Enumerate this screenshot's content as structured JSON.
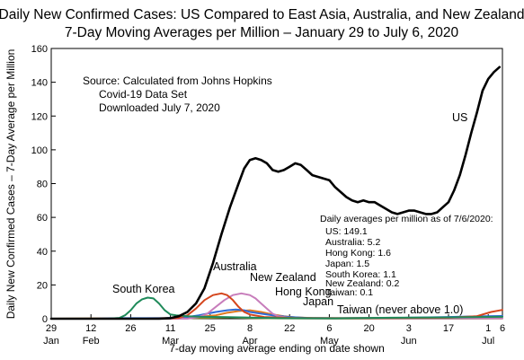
{
  "chart_data": {
    "type": "line",
    "title": "Daily New Confirmed Cases:  US Compared to East Asia, Australia, and New Zealand",
    "subtitle": "7-Day Moving Averages per Million – January 29 to July 6, 2020",
    "xlabel": "7-day moving average ending on date shown",
    "ylabel": "Daily New Confirmed Cases – 7-Day Average per Million",
    "ylim": [
      0,
      160
    ],
    "yticks": [
      0,
      20,
      40,
      60,
      80,
      100,
      120,
      140,
      160
    ],
    "xlim": [
      0,
      159
    ],
    "xticks": [
      {
        "day": 0,
        "top": "29",
        "bottom": "Jan"
      },
      {
        "day": 14,
        "top": "12",
        "bottom": "Feb"
      },
      {
        "day": 28,
        "top": "26",
        "bottom": ""
      },
      {
        "day": 42,
        "top": "11",
        "bottom": "Mar"
      },
      {
        "day": 56,
        "top": "25",
        "bottom": ""
      },
      {
        "day": 70,
        "top": "8",
        "bottom": "Apr"
      },
      {
        "day": 84,
        "top": "22",
        "bottom": ""
      },
      {
        "day": 98,
        "top": "6",
        "bottom": "May"
      },
      {
        "day": 112,
        "top": "20",
        "bottom": ""
      },
      {
        "day": 126,
        "top": "3",
        "bottom": "Jun"
      },
      {
        "day": 140,
        "top": "17",
        "bottom": ""
      },
      {
        "day": 154,
        "top": "1",
        "bottom": "Jul"
      },
      {
        "day": 159,
        "top": "6",
        "bottom": ""
      }
    ],
    "grid": false,
    "source_note": [
      "Source:  Calculated from Johns Hopkins",
      "Covid-19 Data Set",
      "Downloaded July 7, 2020"
    ],
    "averages_box": {
      "heading": "Daily averages per million as of 7/6/2020:",
      "lines": [
        "US: 149.1",
        "Australia:  5.2",
        "Hong Kong:  1.6",
        "Japan:  1.5",
        "South Korea:  1.1",
        "New Zealand:  0.2",
        "Taiwan:  0.1"
      ]
    },
    "series": [
      {
        "name": "US",
        "color": "#000000",
        "points": [
          [
            0,
            0
          ],
          [
            30,
            0
          ],
          [
            38,
            0
          ],
          [
            42,
            0.3
          ],
          [
            45,
            1.5
          ],
          [
            48,
            4
          ],
          [
            51,
            9
          ],
          [
            54,
            18
          ],
          [
            57,
            33
          ],
          [
            60,
            50
          ],
          [
            63,
            66
          ],
          [
            66,
            80
          ],
          [
            68,
            89
          ],
          [
            70,
            94
          ],
          [
            72,
            95
          ],
          [
            74,
            94
          ],
          [
            76,
            92
          ],
          [
            78,
            88
          ],
          [
            80,
            87
          ],
          [
            82,
            88
          ],
          [
            84,
            90
          ],
          [
            86,
            92
          ],
          [
            88,
            91
          ],
          [
            90,
            88
          ],
          [
            92,
            85
          ],
          [
            94,
            84
          ],
          [
            96,
            83
          ],
          [
            98,
            82
          ],
          [
            100,
            78
          ],
          [
            102,
            75
          ],
          [
            104,
            72
          ],
          [
            106,
            70
          ],
          [
            108,
            69
          ],
          [
            110,
            70
          ],
          [
            112,
            69
          ],
          [
            114,
            69
          ],
          [
            116,
            67
          ],
          [
            118,
            65
          ],
          [
            120,
            63
          ],
          [
            122,
            62
          ],
          [
            124,
            63
          ],
          [
            126,
            64
          ],
          [
            128,
            64
          ],
          [
            130,
            63
          ],
          [
            132,
            62
          ],
          [
            134,
            62
          ],
          [
            136,
            63
          ],
          [
            138,
            66
          ],
          [
            140,
            69
          ],
          [
            142,
            76
          ],
          [
            144,
            85
          ],
          [
            146,
            97
          ],
          [
            148,
            110
          ],
          [
            150,
            122
          ],
          [
            152,
            135
          ],
          [
            154,
            142
          ],
          [
            156,
            146
          ],
          [
            158,
            149
          ]
        ]
      },
      {
        "name": "South Korea",
        "color": "#1f8a5a",
        "points": [
          [
            0,
            0
          ],
          [
            20,
            0
          ],
          [
            24,
            0.5
          ],
          [
            26,
            2
          ],
          [
            28,
            5
          ],
          [
            30,
            9
          ],
          [
            32,
            11.5
          ],
          [
            34,
            12.5
          ],
          [
            36,
            12
          ],
          [
            38,
            9
          ],
          [
            40,
            5
          ],
          [
            42,
            2.5
          ],
          [
            44,
            2
          ],
          [
            46,
            1.8
          ],
          [
            48,
            1.5
          ],
          [
            52,
            1.2
          ],
          [
            60,
            1.0
          ],
          [
            80,
            0.3
          ],
          [
            100,
            0.2
          ],
          [
            120,
            0.6
          ],
          [
            140,
            0.8
          ],
          [
            150,
            1
          ],
          [
            159,
            1.1
          ]
        ]
      },
      {
        "name": "Australia",
        "color": "#d4451c",
        "points": [
          [
            0,
            0
          ],
          [
            40,
            0
          ],
          [
            45,
            0.5
          ],
          [
            48,
            2
          ],
          [
            51,
            6
          ],
          [
            54,
            11
          ],
          [
            57,
            14
          ],
          [
            60,
            15
          ],
          [
            62,
            14
          ],
          [
            64,
            11
          ],
          [
            66,
            7
          ],
          [
            68,
            4
          ],
          [
            70,
            2.5
          ],
          [
            75,
            1
          ],
          [
            85,
            0.5
          ],
          [
            100,
            0.3
          ],
          [
            120,
            0.5
          ],
          [
            140,
            0.6
          ],
          [
            150,
            1.5
          ],
          [
            155,
            4
          ],
          [
            159,
            5.2
          ]
        ]
      },
      {
        "name": "New Zealand",
        "color": "#c77dbb",
        "points": [
          [
            0,
            0
          ],
          [
            48,
            0
          ],
          [
            52,
            1
          ],
          [
            55,
            3
          ],
          [
            58,
            7
          ],
          [
            61,
            11
          ],
          [
            64,
            14
          ],
          [
            67,
            15
          ],
          [
            70,
            14
          ],
          [
            72,
            12
          ],
          [
            74,
            9
          ],
          [
            76,
            6
          ],
          [
            78,
            3
          ],
          [
            80,
            1.5
          ],
          [
            84,
            0.5
          ],
          [
            90,
            0.2
          ],
          [
            159,
            0.2
          ]
        ]
      },
      {
        "name": "Hong Kong",
        "color": "#2e6bd6",
        "points": [
          [
            0,
            0
          ],
          [
            15,
            0
          ],
          [
            25,
            0.3
          ],
          [
            40,
            0.3
          ],
          [
            48,
            1
          ],
          [
            52,
            2
          ],
          [
            55,
            3
          ],
          [
            58,
            4
          ],
          [
            62,
            5
          ],
          [
            65,
            5.5
          ],
          [
            68,
            5
          ],
          [
            70,
            4
          ],
          [
            74,
            3
          ],
          [
            78,
            2
          ],
          [
            84,
            1
          ],
          [
            90,
            0.5
          ],
          [
            100,
            0.3
          ],
          [
            120,
            0.4
          ],
          [
            140,
            1
          ],
          [
            150,
            1.4
          ],
          [
            159,
            1.6
          ]
        ]
      },
      {
        "name": "Japan",
        "color": "#e07a1f",
        "points": [
          [
            0,
            0
          ],
          [
            20,
            0.1
          ],
          [
            30,
            0.2
          ],
          [
            40,
            0.4
          ],
          [
            50,
            0.8
          ],
          [
            58,
            2
          ],
          [
            62,
            3.5
          ],
          [
            66,
            4.5
          ],
          [
            70,
            5
          ],
          [
            74,
            4
          ],
          [
            78,
            2.5
          ],
          [
            82,
            1.5
          ],
          [
            86,
            0.8
          ],
          [
            92,
            0.4
          ],
          [
            100,
            0.3
          ],
          [
            110,
            0.3
          ],
          [
            120,
            0.4
          ],
          [
            130,
            0.5
          ],
          [
            140,
            0.8
          ],
          [
            150,
            1.2
          ],
          [
            159,
            1.5
          ]
        ]
      },
      {
        "name": "Taiwan",
        "color": "#8a8a2a",
        "points": [
          [
            0,
            0
          ],
          [
            20,
            0.1
          ],
          [
            40,
            0.1
          ],
          [
            55,
            0.5
          ],
          [
            62,
            0.8
          ],
          [
            70,
            0.4
          ],
          [
            80,
            0.2
          ],
          [
            100,
            0.05
          ],
          [
            159,
            0.1
          ]
        ]
      }
    ],
    "series_labels": [
      {
        "text": "US",
        "series": "US"
      },
      {
        "text": "South Korea",
        "series": "South Korea"
      },
      {
        "text": "Australia",
        "series": "Australia"
      },
      {
        "text": "New Zealand",
        "series": "New Zealand"
      },
      {
        "text": "Hong Kong",
        "series": "Hong Kong"
      },
      {
        "text": "Japan",
        "series": "Japan"
      },
      {
        "text": "Taiwan (never above 1.0)",
        "series": "Taiwan"
      }
    ]
  }
}
